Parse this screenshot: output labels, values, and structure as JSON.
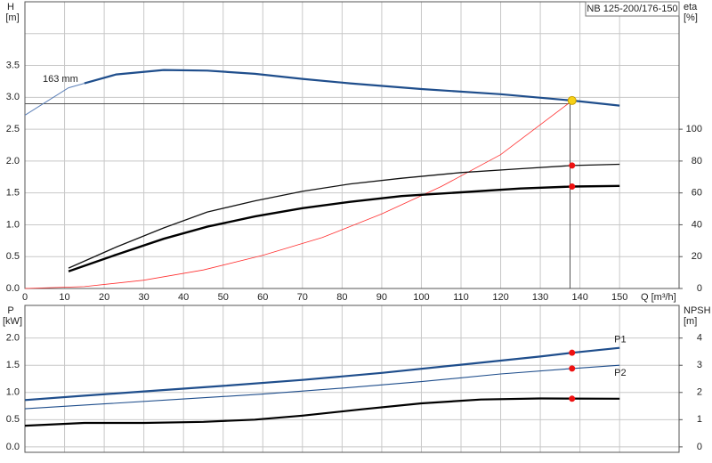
{
  "chart_data": [
    {
      "type": "line",
      "title": "NB 125-200/176-150",
      "ylabel": "H",
      "yunit": "[m]",
      "y2label": "eta",
      "y2unit": "[%]",
      "xlabel": "Q [m³/h]",
      "xlim": [
        0,
        165
      ],
      "xticks": [
        0,
        10,
        20,
        30,
        40,
        50,
        60,
        70,
        80,
        90,
        100,
        110,
        120,
        130,
        140,
        150
      ],
      "xtick_labels": true,
      "ylim": [
        0,
        4.5
      ],
      "yticks": [
        {
          "value": 0,
          "label": "0.0"
        },
        {
          "value": 0.5,
          "label": "0.5"
        },
        {
          "value": 1,
          "label": "1.0"
        },
        {
          "value": 1.5,
          "label": "1.5"
        },
        {
          "value": 2,
          "label": "2.0"
        },
        {
          "value": 2.5,
          "label": "2.5"
        },
        {
          "value": 3,
          "label": "3.0"
        },
        {
          "value": 3.5,
          "label": "3.5"
        },
        {
          "value": 4,
          "label": null
        }
      ],
      "y2lim": [
        0,
        180
      ],
      "y2ticks": [
        0,
        20,
        40,
        60,
        80,
        100
      ],
      "grid": true,
      "annotations": [
        {
          "text": "163 mm"
        }
      ],
      "series": [
        {
          "color": "#5b7fb8",
          "width": 1,
          "x": [
            0,
            11,
            15
          ],
          "values": [
            2.72,
            3.15,
            3.22
          ]
        },
        {
          "color": "#1f4e8c",
          "width": 2.2,
          "x": [
            15,
            23,
            35,
            46,
            58,
            70,
            82,
            100,
            120,
            138,
            150
          ],
          "values": [
            3.22,
            3.36,
            3.43,
            3.42,
            3.37,
            3.29,
            3.22,
            3.13,
            3.05,
            2.95,
            2.87
          ]
        },
        {
          "color": "#ff3030",
          "width": 0.8,
          "x": [
            0,
            15,
            30,
            45,
            60,
            75,
            90,
            105,
            120,
            137
          ],
          "values": [
            0,
            0.03,
            0.13,
            0.29,
            0.52,
            0.8,
            1.17,
            1.6,
            2.1,
            2.9
          ]
        },
        {
          "color": "#111111",
          "width": 1.3,
          "axis": "y2",
          "x": [
            11,
            23,
            35,
            46,
            58,
            70,
            82,
            95,
            110,
            125,
            138,
            150
          ],
          "values": [
            12.8,
            26,
            38,
            48,
            55,
            61,
            65.6,
            69.2,
            72.8,
            75.2,
            77.2,
            78
          ]
        },
        {
          "color": "#000000",
          "width": 2.4,
          "axis": "y2",
          "x": [
            11,
            23,
            35,
            46,
            58,
            70,
            82,
            95,
            110,
            125,
            138,
            150
          ],
          "values": [
            10.8,
            21.2,
            31.2,
            38.8,
            45.2,
            50.4,
            54.4,
            58,
            60.4,
            62.8,
            64,
            64.4
          ]
        }
      ],
      "guide": {
        "x": 137.5,
        "y": 2.9
      },
      "markers": [
        {
          "x": 138,
          "y": 2.95,
          "color": "#f7d117"
        },
        {
          "x": 138,
          "y": 77.2,
          "axis": "y2",
          "color": "#ee1111"
        },
        {
          "x": 138,
          "y": 64,
          "axis": "y2",
          "color": "#ee1111"
        }
      ]
    },
    {
      "type": "line",
      "ylabel": "P",
      "yunit": "[kW]",
      "y2label": "NPSH",
      "y2unit": "[m]",
      "xlim": [
        0,
        165
      ],
      "xticks": [
        0,
        10,
        20,
        30,
        40,
        50,
        60,
        70,
        80,
        90,
        100,
        110,
        120,
        130,
        140,
        150
      ],
      "xtick_labels": false,
      "ylim": [
        -0.1,
        2.6
      ],
      "yticks": [
        {
          "value": 0,
          "label": "0.0"
        },
        {
          "value": 0.5,
          "label": "0.5"
        },
        {
          "value": 1,
          "label": "1.0"
        },
        {
          "value": 1.5,
          "label": "1.5"
        },
        {
          "value": 2,
          "label": "2.0"
        }
      ],
      "y2lim": [
        -0.2,
        5.2
      ],
      "y2ticks": [
        0,
        1,
        2,
        3,
        4
      ],
      "grid": true,
      "series": [
        {
          "name": "P1",
          "color": "#1f4e8c",
          "width": 2.2,
          "x": [
            0,
            15,
            30,
            50,
            70,
            90,
            110,
            130,
            138,
            150
          ],
          "values": [
            0.86,
            0.94,
            1.02,
            1.12,
            1.23,
            1.36,
            1.51,
            1.66,
            1.73,
            1.82
          ]
        },
        {
          "name": "P2",
          "color": "#1f4e8c",
          "width": 1.1,
          "x": [
            0,
            20,
            40,
            60,
            80,
            100,
            120,
            138,
            150
          ],
          "values": [
            0.7,
            0.79,
            0.88,
            0.97,
            1.08,
            1.2,
            1.34,
            1.44,
            1.5
          ]
        },
        {
          "color": "#000000",
          "width": 2.2,
          "axis": "y2",
          "x": [
            0,
            15,
            30,
            45,
            58,
            70,
            85,
            100,
            115,
            130,
            150
          ],
          "values": [
            0.78,
            0.88,
            0.88,
            0.92,
            1.0,
            1.15,
            1.38,
            1.6,
            1.74,
            1.78,
            1.77
          ]
        }
      ],
      "markers": [
        {
          "x": 138,
          "y": 1.73,
          "color": "#ee1111"
        },
        {
          "x": 138,
          "y": 1.44,
          "color": "#ee1111"
        },
        {
          "x": 138,
          "y": 1.77,
          "axis": "y2",
          "color": "#ee1111"
        }
      ]
    }
  ]
}
